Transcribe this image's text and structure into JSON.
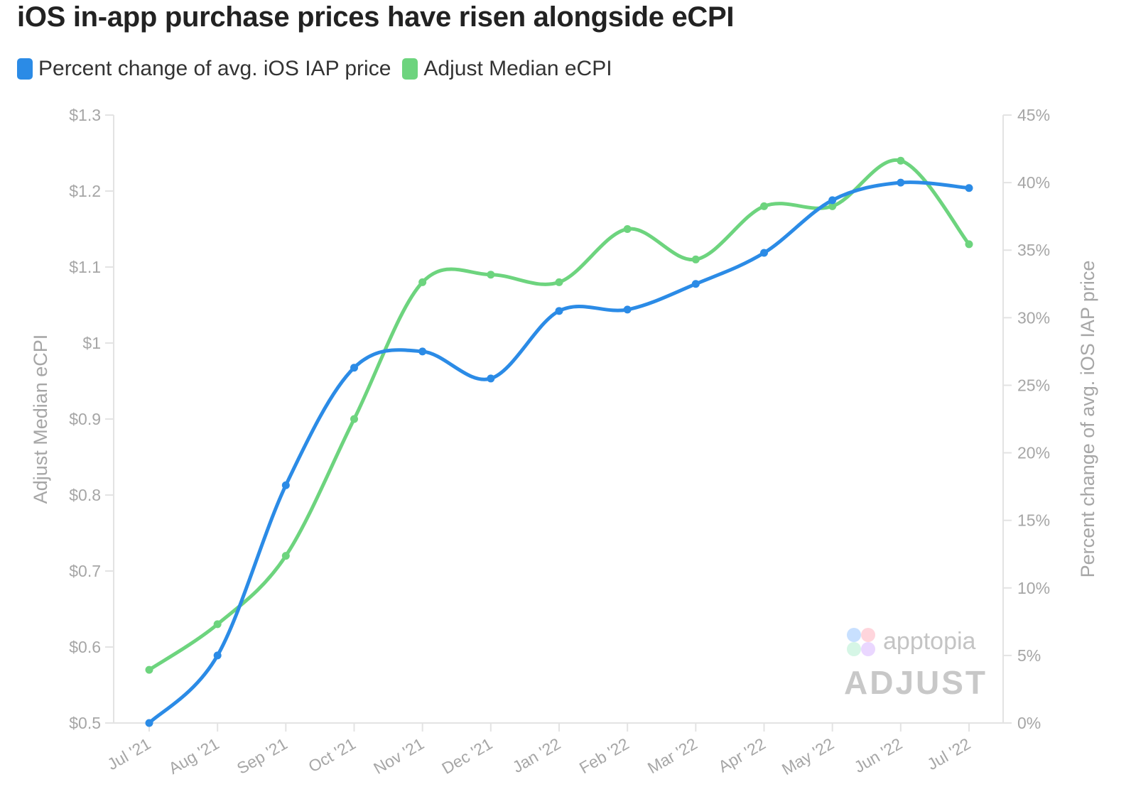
{
  "title": "iOS in-app purchase prices have risen alongside eCPI",
  "legend": [
    {
      "label": "Percent change of avg. iOS IAP price",
      "color": "#2b8be6"
    },
    {
      "label": "Adjust Median eCPI",
      "color": "#6dd47e"
    }
  ],
  "watermark": {
    "apptopia": "apptopia",
    "adjust": "ADJUST"
  },
  "chart_data": {
    "type": "line",
    "title": "iOS in-app purchase prices have risen alongside eCPI",
    "categories": [
      "Jul '21",
      "Aug '21",
      "Sep '21",
      "Oct '21",
      "Nov '21",
      "Dec '21",
      "Jan '22",
      "Feb '22",
      "Mar '22",
      "Apr '22",
      "May '22",
      "Jun '22",
      "Jul '22"
    ],
    "left_axis": {
      "label": "Adjust Median eCPI",
      "range": [
        0.5,
        1.3
      ],
      "ticks": [
        0.5,
        0.6,
        0.7,
        0.8,
        0.9,
        1.0,
        1.1,
        1.2,
        1.3
      ],
      "tick_labels": [
        "$0.5",
        "$0.6",
        "$0.7",
        "$0.8",
        "$0.9",
        "$1",
        "$1.1",
        "$1.2",
        "$1.3"
      ]
    },
    "right_axis": {
      "label": "Percent change of avg. iOS IAP price",
      "range": [
        0,
        45
      ],
      "ticks": [
        0,
        5,
        10,
        15,
        20,
        25,
        30,
        35,
        40,
        45
      ],
      "tick_labels": [
        "0%",
        "5%",
        "10%",
        "15%",
        "20%",
        "25%",
        "30%",
        "35%",
        "40%",
        "45%"
      ]
    },
    "series": [
      {
        "name": "Percent change of avg. iOS IAP price",
        "axis": "right",
        "color": "#2b8be6",
        "values": [
          0.0,
          5.0,
          17.6,
          26.3,
          27.5,
          25.5,
          30.5,
          30.6,
          32.5,
          34.8,
          38.7,
          40.0,
          39.6
        ]
      },
      {
        "name": "Adjust Median eCPI",
        "axis": "left",
        "color": "#6dd47e",
        "values": [
          0.57,
          0.63,
          0.72,
          0.9,
          1.08,
          1.09,
          1.08,
          1.15,
          1.11,
          1.18,
          1.18,
          1.24,
          1.13
        ]
      }
    ],
    "grid": false,
    "legend_position": "top-left"
  }
}
